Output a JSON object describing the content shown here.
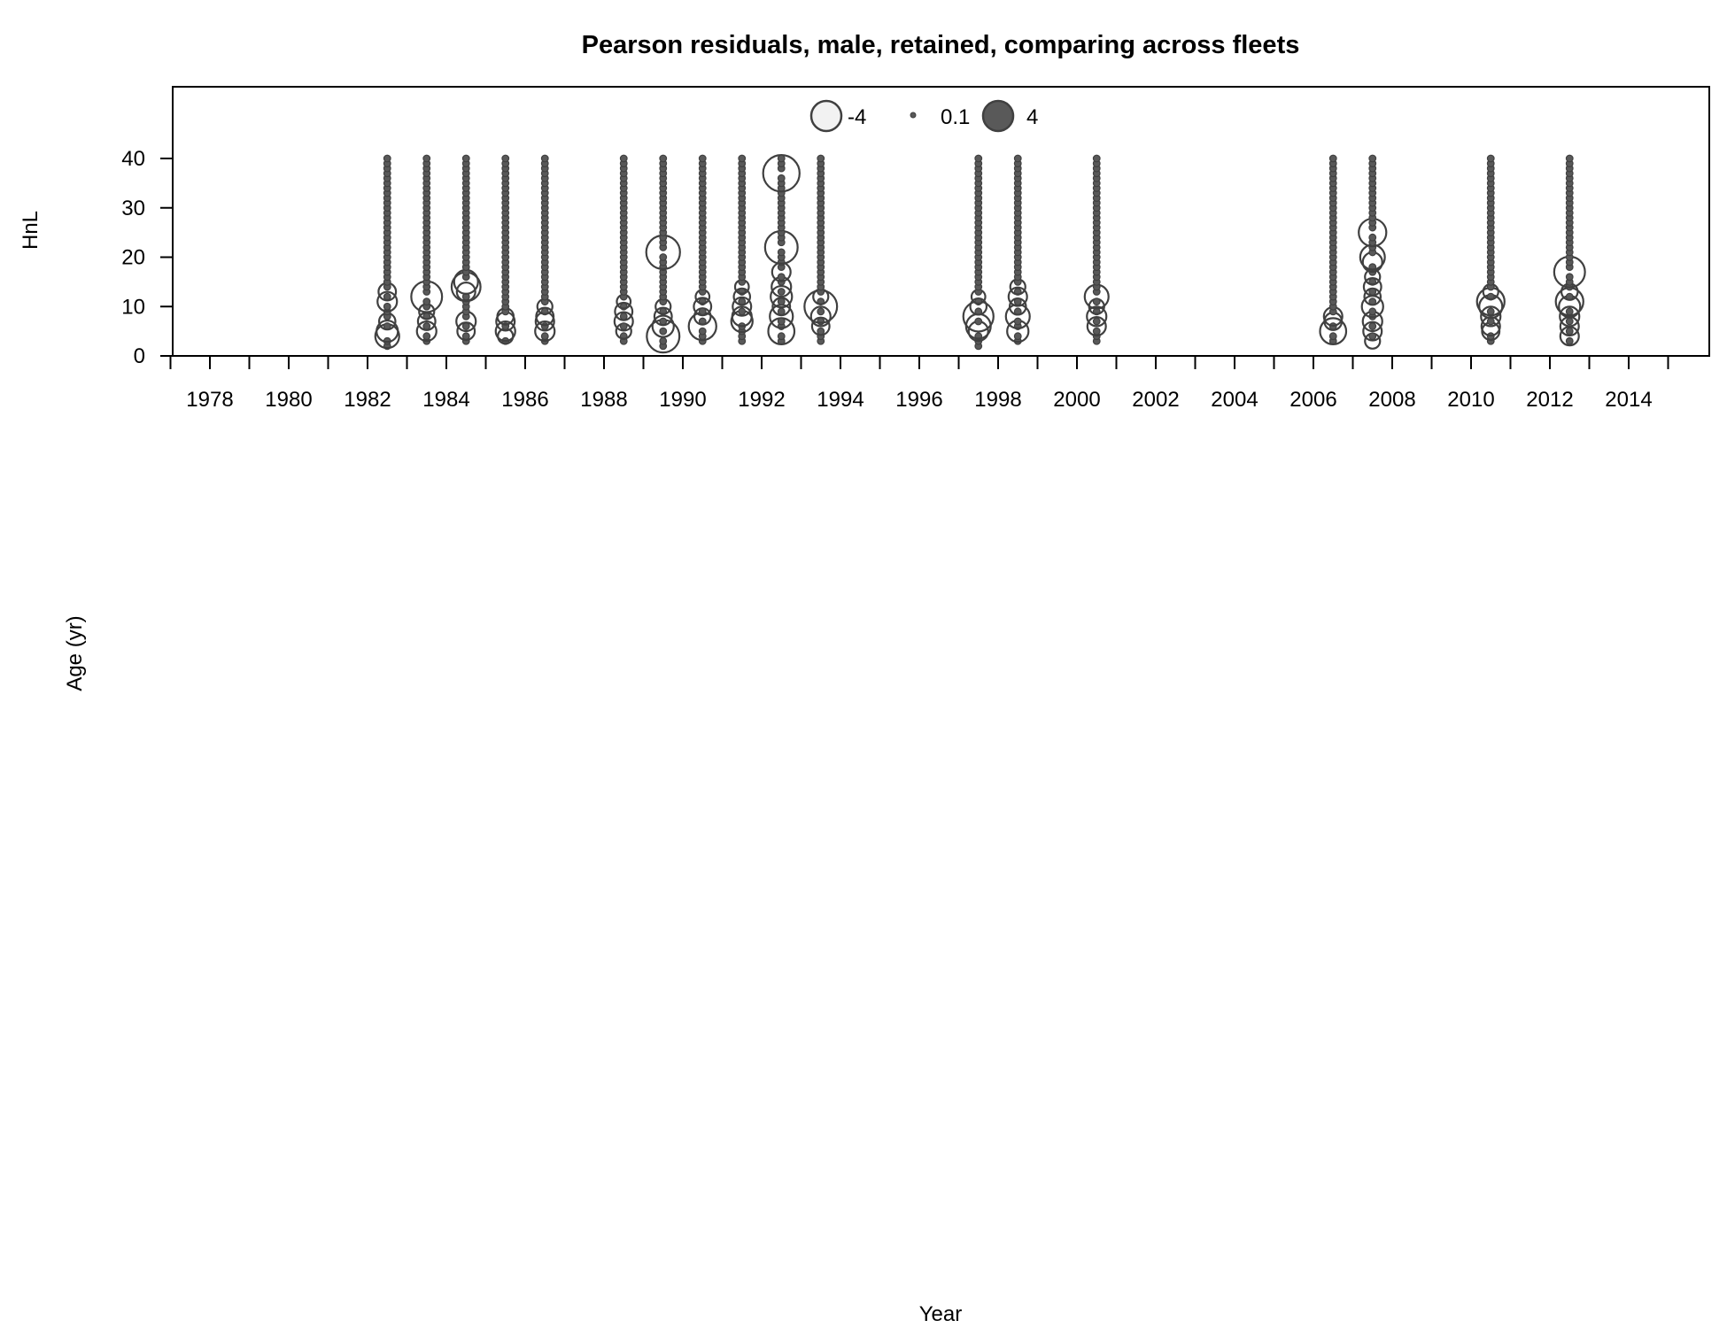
{
  "chart_data": {
    "type": "scatter",
    "subtype": "bubble",
    "title": "Pearson residuals, male, retained, comparing across fleets",
    "xlabel": "Year",
    "ylabel_panel": "HnL",
    "ylabel_outer": "Age (yr)",
    "xlim": [
      1977,
      2016
    ],
    "ylim": [
      0,
      40
    ],
    "x_ticks": [
      1978,
      1980,
      1982,
      1984,
      1986,
      1988,
      1990,
      1992,
      1994,
      1996,
      1998,
      2000,
      2002,
      2004,
      2006,
      2008,
      2010,
      2012,
      2014
    ],
    "x_tick_labels": [
      "1978",
      "1980",
      "1982",
      "1984",
      "1986",
      "1988",
      "1990",
      "1992",
      "1994",
      "1996",
      "1998",
      "2000",
      "2002",
      "2004",
      "2006",
      "2008",
      "2010",
      "2012",
      "2014"
    ],
    "y_ticks": [
      0,
      10,
      20,
      30,
      40
    ],
    "y_tick_labels": [
      "0",
      "10",
      "20",
      "30",
      "40"
    ],
    "legend": {
      "position": "top-center",
      "entries": [
        {
          "label": "-4",
          "value": -4
        },
        {
          "label": "0.1",
          "value": 0.1
        },
        {
          "label": "4",
          "value": 4
        }
      ]
    },
    "colors": {
      "negative_fill": "#f2f2f2",
      "positive_fill": "#595959",
      "stroke": "#404040"
    },
    "series": [
      {
        "x": 1982.5,
        "ymin": 2,
        "ymax": 40,
        "big": [
          [
            4,
            -1.5
          ],
          [
            5,
            -1.2
          ],
          [
            11,
            -1.0
          ],
          [
            13,
            -0.8
          ],
          [
            7,
            -0.7
          ]
        ]
      },
      {
        "x": 1983.5,
        "ymin": 3,
        "ymax": 40,
        "big": [
          [
            12,
            -2.5
          ],
          [
            5,
            -1.0
          ],
          [
            7,
            -0.8
          ],
          [
            9,
            -0.6
          ]
        ]
      },
      {
        "x": 1984.5,
        "ymin": 3,
        "ymax": 40,
        "big": [
          [
            14,
            -2.2
          ],
          [
            15,
            1.5
          ],
          [
            7,
            -1.0
          ],
          [
            5,
            -0.8
          ],
          [
            13,
            0.9
          ]
        ]
      },
      {
        "x": 1985.5,
        "ymin": 3,
        "ymax": 40,
        "big": [
          [
            5,
            -1.0
          ],
          [
            7,
            -0.9
          ],
          [
            8,
            -0.7
          ],
          [
            4,
            -0.6
          ]
        ]
      },
      {
        "x": 1986.5,
        "ymin": 3,
        "ymax": 40,
        "big": [
          [
            5,
            -1.0
          ],
          [
            7,
            -0.9
          ],
          [
            8,
            -0.8
          ],
          [
            10,
            -0.6
          ]
        ]
      },
      {
        "x": 1988.5,
        "ymin": 3,
        "ymax": 40,
        "big": [
          [
            7,
            -0.9
          ],
          [
            9,
            -0.8
          ],
          [
            5,
            -0.6
          ],
          [
            11,
            -0.5
          ]
        ]
      },
      {
        "x": 1989.5,
        "ymin": 2,
        "ymax": 40,
        "big": [
          [
            21,
            -3.0
          ],
          [
            4,
            -2.8
          ],
          [
            6,
            -1.2
          ],
          [
            8,
            -0.8
          ],
          [
            10,
            -0.6
          ]
        ]
      },
      {
        "x": 1990.5,
        "ymin": 3,
        "ymax": 40,
        "big": [
          [
            6,
            -2.0
          ],
          [
            10,
            -0.8
          ],
          [
            8,
            -0.7
          ],
          [
            12,
            -0.5
          ]
        ]
      },
      {
        "x": 1991.5,
        "ymin": 3,
        "ymax": 40,
        "big": [
          [
            7,
            -1.2
          ],
          [
            8,
            -1.0
          ],
          [
            10,
            -0.9
          ],
          [
            12,
            -0.7
          ],
          [
            14,
            -0.5
          ]
        ]
      },
      {
        "x": 1992.5,
        "ymin": 3,
        "ymax": 40,
        "big": [
          [
            37,
            -3.5
          ],
          [
            22,
            -2.8
          ],
          [
            5,
            -1.8
          ],
          [
            8,
            -1.4
          ],
          [
            12,
            -1.2
          ],
          [
            14,
            -1.0
          ],
          [
            17,
            -0.9
          ],
          [
            10,
            -0.8
          ]
        ]
      },
      {
        "x": 1993.5,
        "ymin": 3,
        "ymax": 40,
        "big": [
          [
            10,
            -2.8
          ],
          [
            8,
            -1.0
          ],
          [
            6,
            -0.8
          ],
          [
            12,
            -0.6
          ]
        ]
      },
      {
        "x": 1997.5,
        "ymin": 2,
        "ymax": 40,
        "big": [
          [
            8,
            -2.4
          ],
          [
            6,
            -1.6
          ],
          [
            5,
            -1.0
          ],
          [
            10,
            -0.7
          ],
          [
            12,
            -0.5
          ]
        ]
      },
      {
        "x": 1998.5,
        "ymin": 3,
        "ymax": 40,
        "big": [
          [
            8,
            -1.5
          ],
          [
            5,
            -1.2
          ],
          [
            12,
            -0.9
          ],
          [
            10,
            -0.7
          ],
          [
            14,
            -0.6
          ]
        ]
      },
      {
        "x": 2000.5,
        "ymin": 3,
        "ymax": 40,
        "big": [
          [
            12,
            -1.5
          ],
          [
            8,
            -1.0
          ],
          [
            6,
            -0.9
          ],
          [
            10,
            -0.6
          ]
        ]
      },
      {
        "x": 2006.5,
        "ymin": 3,
        "ymax": 40,
        "big": [
          [
            5,
            -1.8
          ],
          [
            8,
            -0.9
          ],
          [
            7,
            -0.8
          ]
        ]
      },
      {
        "x": 2007.5,
        "ymin": 3,
        "ymax": 40,
        "big": [
          [
            25,
            -2.0
          ],
          [
            20,
            -1.6
          ],
          [
            19,
            1.0
          ],
          [
            10,
            -1.2
          ],
          [
            7,
            -1.0
          ],
          [
            5,
            -0.9
          ],
          [
            14,
            -0.8
          ],
          [
            12,
            -0.7
          ],
          [
            16,
            -0.6
          ],
          [
            3,
            -0.6
          ]
        ]
      },
      {
        "x": 2010.5,
        "ymin": 3,
        "ymax": 40,
        "big": [
          [
            11,
            -2.0
          ],
          [
            10,
            -1.4
          ],
          [
            8,
            -1.0
          ],
          [
            6,
            -0.9
          ],
          [
            5,
            -0.8
          ],
          [
            13,
            -0.6
          ]
        ]
      },
      {
        "x": 2012.5,
        "ymin": 3,
        "ymax": 40,
        "big": [
          [
            17,
            -2.5
          ],
          [
            11,
            -2.0
          ],
          [
            10,
            -1.2
          ],
          [
            8,
            -1.0
          ],
          [
            6,
            -0.9
          ],
          [
            4,
            -0.9
          ],
          [
            13,
            -0.7
          ]
        ]
      }
    ]
  }
}
